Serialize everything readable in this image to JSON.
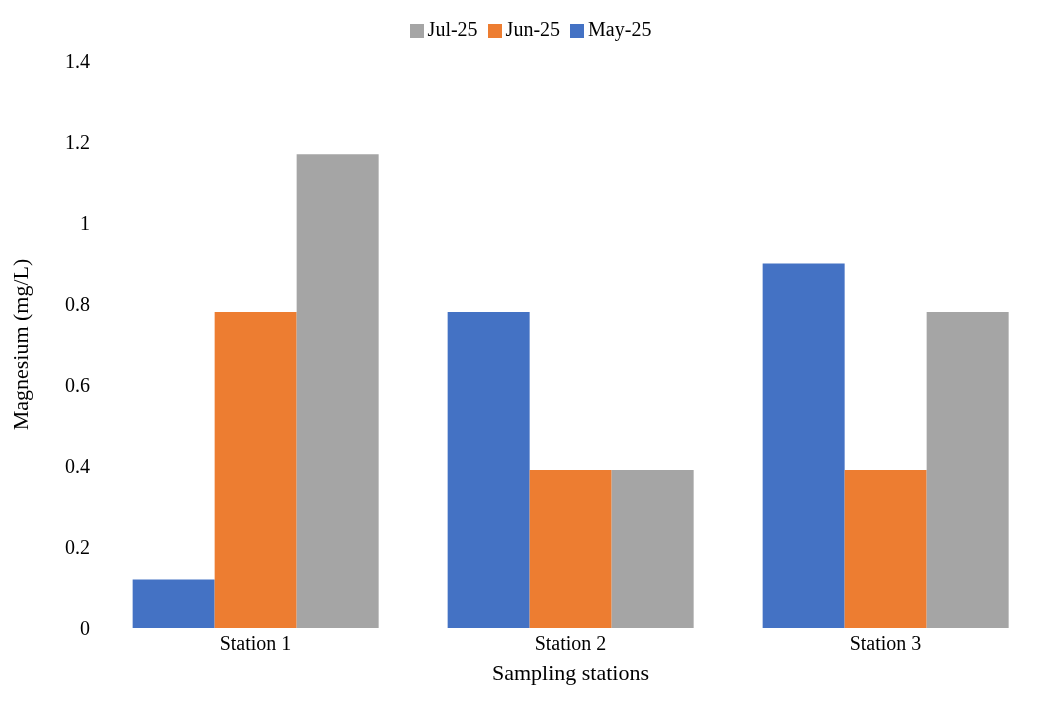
{
  "chart_data": {
    "type": "bar",
    "xlabel": "Sampling stations",
    "ylabel": "Magnesium (mg/L)",
    "categories": [
      "Station 1",
      "Station 2",
      "Station 3"
    ],
    "series": [
      {
        "name": "May-25",
        "color": "#4472c4",
        "values": [
          0.12,
          0.78,
          0.9
        ]
      },
      {
        "name": "Jun-25",
        "color": "#ed7d31",
        "values": [
          0.78,
          0.39,
          0.39
        ]
      },
      {
        "name": "Jul-25",
        "color": "#a5a5a5",
        "values": [
          1.17,
          0.39,
          0.78
        ]
      }
    ],
    "ylim": [
      0,
      1.4
    ],
    "yticks": [
      0,
      0.2,
      0.4,
      0.6,
      0.8,
      1,
      1.2,
      1.4
    ],
    "grid": false,
    "legend": "top"
  }
}
